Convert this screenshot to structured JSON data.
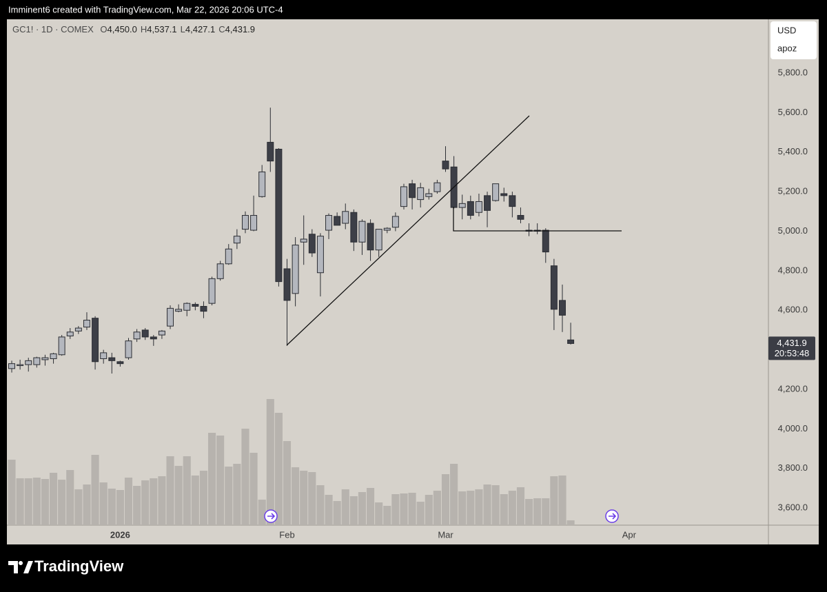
{
  "credit": "Imminent6 created with TradingView.com, Mar 22, 2026 20:06 UTC-4",
  "brand": "TradingView",
  "currency_menu": [
    "USD",
    "apoz"
  ],
  "chart_data": {
    "type": "candlestick",
    "title": "GC1! · 1D · COMEX",
    "ohlc_legend": [
      {
        "label": "O",
        "value": "4,450.0"
      },
      {
        "label": "H",
        "value": "4,537.1"
      },
      {
        "label": "L",
        "value": "4,427.1"
      },
      {
        "label": "C",
        "value": "4,431.9"
      }
    ],
    "open": [
      4305,
      4320,
      4325,
      4325,
      4350,
      4355,
      4375,
      4470,
      4495,
      4515,
      4560,
      4355,
      4360,
      4340,
      4360,
      4455,
      4500,
      4465,
      4475,
      4520,
      4595,
      4600,
      4630,
      4620,
      4635,
      4760,
      4835,
      4940,
      5010,
      5005,
      5175,
      5450,
      5415,
      4810,
      4685,
      4945,
      4985,
      4790,
      5005,
      5075,
      5040,
      5095,
      4945,
      5040,
      4905,
      5005,
      5020,
      5125,
      5240,
      5160,
      5175,
      5200,
      5355,
      5325,
      5120,
      5150,
      5095,
      5180,
      5155,
      5190,
      5180,
      5080,
      5005,
      5005,
      5005,
      4825,
      4650,
      4450
    ],
    "high": [
      4345,
      4350,
      4360,
      4365,
      4375,
      4385,
      4475,
      4510,
      4520,
      4590,
      4570,
      4400,
      4385,
      4345,
      4460,
      4505,
      4510,
      4475,
      4500,
      4625,
      4630,
      4640,
      4640,
      4645,
      4770,
      4850,
      4935,
      5010,
      5100,
      5180,
      5335,
      5625,
      5420,
      4860,
      4970,
      5080,
      5010,
      4990,
      5090,
      5095,
      5140,
      5110,
      5060,
      5060,
      5010,
      5020,
      5095,
      5240,
      5260,
      5245,
      5215,
      5260,
      5430,
      5380,
      5185,
      5180,
      5190,
      5200,
      5240,
      5220,
      5200,
      5120,
      5040,
      5040,
      5015,
      4860,
      4730,
      4537.1
    ],
    "low": [
      4285,
      4300,
      4290,
      4310,
      4320,
      4330,
      4370,
      4455,
      4480,
      4500,
      4300,
      4330,
      4280,
      4315,
      4350,
      4440,
      4450,
      4420,
      4455,
      4505,
      4590,
      4570,
      4600,
      4560,
      4625,
      4750,
      4830,
      4910,
      4990,
      5000,
      5170,
      5300,
      4720,
      4420,
      4620,
      4830,
      4870,
      4670,
      4960,
      5030,
      5010,
      4900,
      4880,
      4850,
      4870,
      4990,
      5000,
      5110,
      5110,
      5120,
      5160,
      5190,
      5300,
      5115,
      5060,
      5060,
      5075,
      5020,
      5150,
      5150,
      5070,
      5040,
      4975,
      4985,
      4840,
      4500,
      4490,
      4427.1
    ],
    "close": [
      4330,
      4325,
      4345,
      4360,
      4360,
      4380,
      4465,
      4490,
      4510,
      4550,
      4340,
      4385,
      4345,
      4330,
      4445,
      4490,
      4465,
      4455,
      4495,
      4610,
      4605,
      4635,
      4620,
      4595,
      4760,
      4835,
      4910,
      4975,
      5080,
      5080,
      5300,
      5355,
      4745,
      4650,
      4930,
      4960,
      4890,
      4975,
      5080,
      5030,
      5100,
      4945,
      5050,
      4905,
      5010,
      5015,
      5075,
      5225,
      5170,
      5220,
      5190,
      5245,
      5315,
      5120,
      5140,
      5080,
      5150,
      5105,
      5240,
      5180,
      5125,
      5060,
      5000,
      5000,
      4895,
      4605,
      4575,
      4431.9
    ],
    "volume": [
      95,
      68,
      68,
      69,
      67,
      76,
      66,
      80,
      52,
      59,
      102,
      62,
      53,
      51,
      69,
      57,
      65,
      68,
      71,
      100,
      86,
      100,
      72,
      79,
      134,
      130,
      85,
      89,
      140,
      105,
      37,
      183,
      163,
      122,
      84,
      79,
      77,
      58,
      44,
      35,
      52,
      42,
      48,
      54,
      33,
      28,
      45,
      46,
      47,
      34,
      44,
      50,
      74,
      89,
      49,
      50,
      52,
      59,
      58,
      45,
      50,
      55,
      38,
      39,
      39,
      71,
      72,
      7
    ],
    "up_color": "#b4b7be",
    "down_color": "#3d3f47",
    "wick_color": "#2b2d33",
    "volume_color": "#b7b3ae",
    "ylim": [
      3513,
      6072
    ],
    "yticks": [
      {
        "value": 3600,
        "label": "3,600.0"
      },
      {
        "value": 3800,
        "label": "3,800.0"
      },
      {
        "value": 4000,
        "label": "4,000.0"
      },
      {
        "value": 4200,
        "label": "4,200.0"
      },
      {
        "value": 4600,
        "label": "4,600.0"
      },
      {
        "value": 4800,
        "label": "4,800.0"
      },
      {
        "value": 5000,
        "label": "5,000.0"
      },
      {
        "value": 5200,
        "label": "5,200.0"
      },
      {
        "value": 5400,
        "label": "5,400.0"
      },
      {
        "value": 5600,
        "label": "5,600.0"
      },
      {
        "value": 5800,
        "label": "5,800.0"
      }
    ],
    "xlim": [
      -0.58,
      90.7
    ],
    "xticks": [
      {
        "value": 13,
        "label": "2026"
      },
      {
        "value": 33,
        "label": "Feb"
      },
      {
        "value": 52,
        "label": "Mar"
      },
      {
        "value": 74,
        "label": "Apr"
      }
    ],
    "last_price": {
      "value": 4431.9,
      "label": "4,431.9"
    },
    "countdown": "20:53:48",
    "grid": false
  }
}
